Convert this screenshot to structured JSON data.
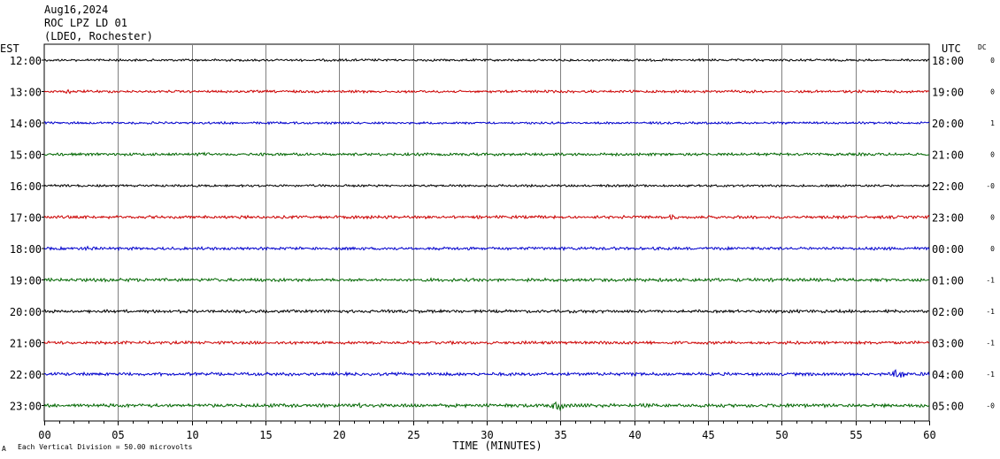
{
  "header": {
    "date": "Aug16,2024",
    "station": "ROC LPZ LD 01",
    "network": "(LDEO, Rochester)"
  },
  "axis": {
    "left_zone_label": "EST",
    "right_zone_label": "UTC",
    "dc_label": "DC",
    "x_label": "TIME (MINUTES)",
    "x_ticks": [
      "00",
      "05",
      "10",
      "15",
      "20",
      "25",
      "30",
      "35",
      "40",
      "45",
      "50",
      "55",
      "60"
    ],
    "footer_note": "Each Vertical Division =   50.00 microvolts",
    "footer_mark": "A"
  },
  "colors": {
    "black": "#000000",
    "red": "#cc0000",
    "blue": "#0000cc",
    "green": "#006600",
    "grid": "#808080"
  },
  "chart_data": {
    "type": "line",
    "xlim": [
      0,
      60
    ],
    "xlabel": "TIME (MINUTES)",
    "rows": [
      {
        "est": "12:00",
        "utc": "18:00",
        "dc": "0",
        "color": "black",
        "amplitude": 1.0,
        "events": []
      },
      {
        "est": "13:00",
        "utc": "19:00",
        "dc": "0",
        "color": "red",
        "amplitude": 1.1,
        "events": [
          {
            "t": 1.8,
            "amp": 2.0
          },
          {
            "t": 58.5,
            "amp": 1.8
          }
        ]
      },
      {
        "est": "14:00",
        "utc": "20:00",
        "dc": "1",
        "color": "blue",
        "amplitude": 1.0,
        "events": []
      },
      {
        "est": "15:00",
        "utc": "21:00",
        "dc": "0",
        "color": "green",
        "amplitude": 1.2,
        "events": [
          {
            "t": 10.9,
            "amp": 2.2
          }
        ]
      },
      {
        "est": "16:00",
        "utc": "22:00",
        "dc": "-0",
        "color": "black",
        "amplitude": 1.0,
        "events": []
      },
      {
        "est": "17:00",
        "utc": "23:00",
        "dc": "0",
        "color": "red",
        "amplitude": 1.3,
        "events": [
          {
            "t": 42.5,
            "amp": 2.2
          }
        ]
      },
      {
        "est": "18:00",
        "utc": "00:00",
        "dc": "0",
        "color": "blue",
        "amplitude": 1.3,
        "events": [
          {
            "t": 3.2,
            "amp": 2.0
          }
        ]
      },
      {
        "est": "19:00",
        "utc": "01:00",
        "dc": "-1",
        "color": "green",
        "amplitude": 1.4,
        "events": []
      },
      {
        "est": "20:00",
        "utc": "02:00",
        "dc": "-1",
        "color": "black",
        "amplitude": 1.3,
        "events": []
      },
      {
        "est": "21:00",
        "utc": "03:00",
        "dc": "-1",
        "color": "red",
        "amplitude": 1.3,
        "events": []
      },
      {
        "est": "22:00",
        "utc": "04:00",
        "dc": "-1",
        "color": "blue",
        "amplitude": 1.4,
        "events": [
          {
            "t": 58.0,
            "amp": 5.5
          }
        ]
      },
      {
        "est": "23:00",
        "utc": "05:00",
        "dc": "-0",
        "color": "green",
        "amplitude": 1.5,
        "events": [
          {
            "t": 21.4,
            "amp": 2.0
          },
          {
            "t": 34.8,
            "amp": 4.5
          }
        ]
      }
    ]
  }
}
